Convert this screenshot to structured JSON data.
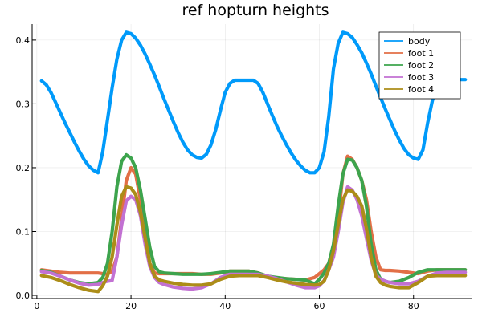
{
  "chart_data": {
    "type": "line",
    "title": "ref hopturn heights",
    "xlabel": "",
    "ylabel": "",
    "xlim": [
      -1,
      92.5
    ],
    "ylim": [
      -0.005,
      0.425
    ],
    "xticks": [
      0,
      20,
      40,
      60,
      80
    ],
    "yticks": [
      0.0,
      0.1,
      0.2,
      0.3,
      0.4
    ],
    "xtick_labels": [
      "0",
      "20",
      "40",
      "60",
      "80"
    ],
    "ytick_labels": [
      "0.0",
      "0.1",
      "0.2",
      "0.3",
      "0.4"
    ],
    "grid": true,
    "legend_position": "top-right",
    "series": [
      {
        "name": "body",
        "color": "#009AFA",
        "x": [
          1,
          2,
          3,
          4,
          5,
          6,
          7,
          8,
          9,
          10,
          11,
          12,
          13,
          14,
          15,
          16,
          17,
          18,
          19,
          20,
          21,
          22,
          23,
          24,
          25,
          26,
          27,
          28,
          29,
          30,
          31,
          32,
          33,
          34,
          35,
          36,
          37,
          38,
          39,
          40,
          41,
          42,
          43,
          44,
          45,
          46,
          47,
          48,
          49,
          50,
          51,
          52,
          53,
          54,
          55,
          56,
          57,
          58,
          59,
          60,
          61,
          62,
          63,
          64,
          65,
          66,
          67,
          68,
          69,
          70,
          71,
          72,
          73,
          74,
          75,
          76,
          77,
          78,
          79,
          80,
          81,
          82,
          83,
          84,
          85,
          86,
          87,
          88,
          89,
          90,
          91
        ],
        "y": [
          0.336,
          0.33,
          0.318,
          0.302,
          0.286,
          0.27,
          0.255,
          0.24,
          0.226,
          0.213,
          0.203,
          0.196,
          0.192,
          0.225,
          0.275,
          0.325,
          0.37,
          0.4,
          0.412,
          0.41,
          0.403,
          0.392,
          0.378,
          0.362,
          0.345,
          0.327,
          0.308,
          0.29,
          0.272,
          0.255,
          0.24,
          0.228,
          0.22,
          0.216,
          0.215,
          0.221,
          0.236,
          0.26,
          0.29,
          0.318,
          0.332,
          0.337,
          0.337,
          0.337,
          0.337,
          0.337,
          0.332,
          0.318,
          0.3,
          0.282,
          0.265,
          0.25,
          0.236,
          0.223,
          0.212,
          0.203,
          0.196,
          0.192,
          0.192,
          0.2,
          0.225,
          0.28,
          0.355,
          0.395,
          0.412,
          0.41,
          0.404,
          0.393,
          0.38,
          0.364,
          0.347,
          0.328,
          0.31,
          0.292,
          0.275,
          0.258,
          0.243,
          0.23,
          0.22,
          0.215,
          0.213,
          0.228,
          0.27,
          0.305,
          0.33,
          0.336,
          0.338,
          0.338,
          0.338,
          0.338,
          0.338
        ]
      },
      {
        "name": "foot 1",
        "color": "#E26F46",
        "x": [
          1,
          3,
          5,
          7,
          9,
          11,
          13,
          15,
          16,
          17,
          18,
          19,
          20,
          21,
          22,
          23,
          24,
          25,
          26,
          27,
          29,
          31,
          33,
          35,
          37,
          39,
          41,
          43,
          45,
          47,
          49,
          51,
          53,
          55,
          57,
          59,
          61,
          62,
          63,
          64,
          65,
          66,
          67,
          68,
          69,
          70,
          71,
          72,
          73,
          74,
          75,
          77,
          79,
          81,
          83,
          85,
          87,
          89,
          91
        ],
        "y": [
          0.04,
          0.038,
          0.036,
          0.035,
          0.035,
          0.035,
          0.035,
          0.033,
          0.038,
          0.06,
          0.12,
          0.18,
          0.2,
          0.19,
          0.15,
          0.09,
          0.05,
          0.035,
          0.034,
          0.034,
          0.034,
          0.034,
          0.034,
          0.033,
          0.033,
          0.035,
          0.038,
          0.038,
          0.038,
          0.035,
          0.03,
          0.027,
          0.026,
          0.025,
          0.024,
          0.028,
          0.04,
          0.05,
          0.07,
          0.12,
          0.19,
          0.218,
          0.213,
          0.2,
          0.18,
          0.15,
          0.1,
          0.06,
          0.04,
          0.039,
          0.039,
          0.038,
          0.036,
          0.034,
          0.038,
          0.04,
          0.04,
          0.04,
          0.04
        ]
      },
      {
        "name": "foot 2",
        "color": "#3DA44D",
        "x": [
          1,
          3,
          5,
          7,
          9,
          11,
          13,
          14,
          15,
          16,
          17,
          18,
          19,
          20,
          21,
          22,
          23,
          24,
          25,
          26,
          27,
          29,
          31,
          33,
          35,
          37,
          39,
          41,
          43,
          45,
          47,
          49,
          51,
          53,
          55,
          57,
          59,
          60,
          61,
          62,
          63,
          64,
          65,
          66,
          67,
          68,
          69,
          70,
          71,
          72,
          73,
          74,
          75,
          77,
          79,
          81,
          83,
          85,
          87,
          89,
          91
        ],
        "y": [
          0.039,
          0.036,
          0.03,
          0.024,
          0.02,
          0.018,
          0.02,
          0.028,
          0.05,
          0.1,
          0.17,
          0.21,
          0.22,
          0.215,
          0.2,
          0.165,
          0.12,
          0.075,
          0.045,
          0.037,
          0.035,
          0.034,
          0.033,
          0.033,
          0.033,
          0.034,
          0.036,
          0.038,
          0.038,
          0.038,
          0.035,
          0.03,
          0.028,
          0.026,
          0.025,
          0.024,
          0.018,
          0.025,
          0.035,
          0.05,
          0.08,
          0.14,
          0.19,
          0.213,
          0.212,
          0.2,
          0.18,
          0.14,
          0.08,
          0.04,
          0.025,
          0.022,
          0.02,
          0.022,
          0.028,
          0.036,
          0.04,
          0.04,
          0.04,
          0.04,
          0.04
        ]
      },
      {
        "name": "foot 3",
        "color": "#C271D2",
        "x": [
          1,
          3,
          5,
          7,
          9,
          11,
          13,
          14,
          15,
          16,
          17,
          18,
          19,
          20,
          21,
          22,
          23,
          24,
          25,
          26,
          27,
          29,
          31,
          33,
          35,
          37,
          39,
          41,
          43,
          45,
          47,
          49,
          51,
          53,
          55,
          57,
          59,
          60,
          61,
          62,
          63,
          64,
          65,
          66,
          67,
          68,
          69,
          70,
          71,
          72,
          73,
          74,
          75,
          77,
          79,
          81,
          83,
          85,
          87,
          89,
          91
        ],
        "y": [
          0.037,
          0.035,
          0.03,
          0.024,
          0.019,
          0.016,
          0.017,
          0.02,
          0.022,
          0.023,
          0.06,
          0.11,
          0.148,
          0.155,
          0.15,
          0.125,
          0.08,
          0.045,
          0.028,
          0.02,
          0.017,
          0.013,
          0.011,
          0.01,
          0.012,
          0.018,
          0.028,
          0.033,
          0.033,
          0.033,
          0.033,
          0.03,
          0.026,
          0.021,
          0.016,
          0.012,
          0.012,
          0.015,
          0.023,
          0.04,
          0.06,
          0.1,
          0.145,
          0.17,
          0.165,
          0.15,
          0.125,
          0.09,
          0.055,
          0.032,
          0.025,
          0.022,
          0.02,
          0.018,
          0.018,
          0.022,
          0.03,
          0.035,
          0.036,
          0.036,
          0.036
        ]
      },
      {
        "name": "foot 4",
        "color": "#AC8D18",
        "x": [
          1,
          3,
          5,
          7,
          9,
          11,
          13,
          14,
          15,
          16,
          17,
          18,
          19,
          20,
          21,
          22,
          23,
          24,
          25,
          26,
          27,
          29,
          31,
          33,
          35,
          37,
          39,
          41,
          43,
          45,
          47,
          49,
          51,
          53,
          55,
          57,
          59,
          60,
          61,
          62,
          63,
          64,
          65,
          66,
          67,
          68,
          69,
          70,
          71,
          72,
          73,
          74,
          75,
          77,
          79,
          81,
          83,
          85,
          87,
          89,
          91
        ],
        "y": [
          0.031,
          0.028,
          0.023,
          0.017,
          0.012,
          0.008,
          0.006,
          0.015,
          0.03,
          0.06,
          0.11,
          0.155,
          0.17,
          0.168,
          0.158,
          0.13,
          0.09,
          0.05,
          0.03,
          0.024,
          0.022,
          0.019,
          0.017,
          0.016,
          0.016,
          0.018,
          0.025,
          0.03,
          0.031,
          0.031,
          0.031,
          0.028,
          0.024,
          0.021,
          0.019,
          0.017,
          0.016,
          0.017,
          0.022,
          0.04,
          0.07,
          0.11,
          0.15,
          0.165,
          0.163,
          0.155,
          0.14,
          0.105,
          0.06,
          0.03,
          0.02,
          0.016,
          0.014,
          0.012,
          0.012,
          0.02,
          0.03,
          0.031,
          0.031,
          0.031,
          0.031
        ]
      }
    ]
  }
}
